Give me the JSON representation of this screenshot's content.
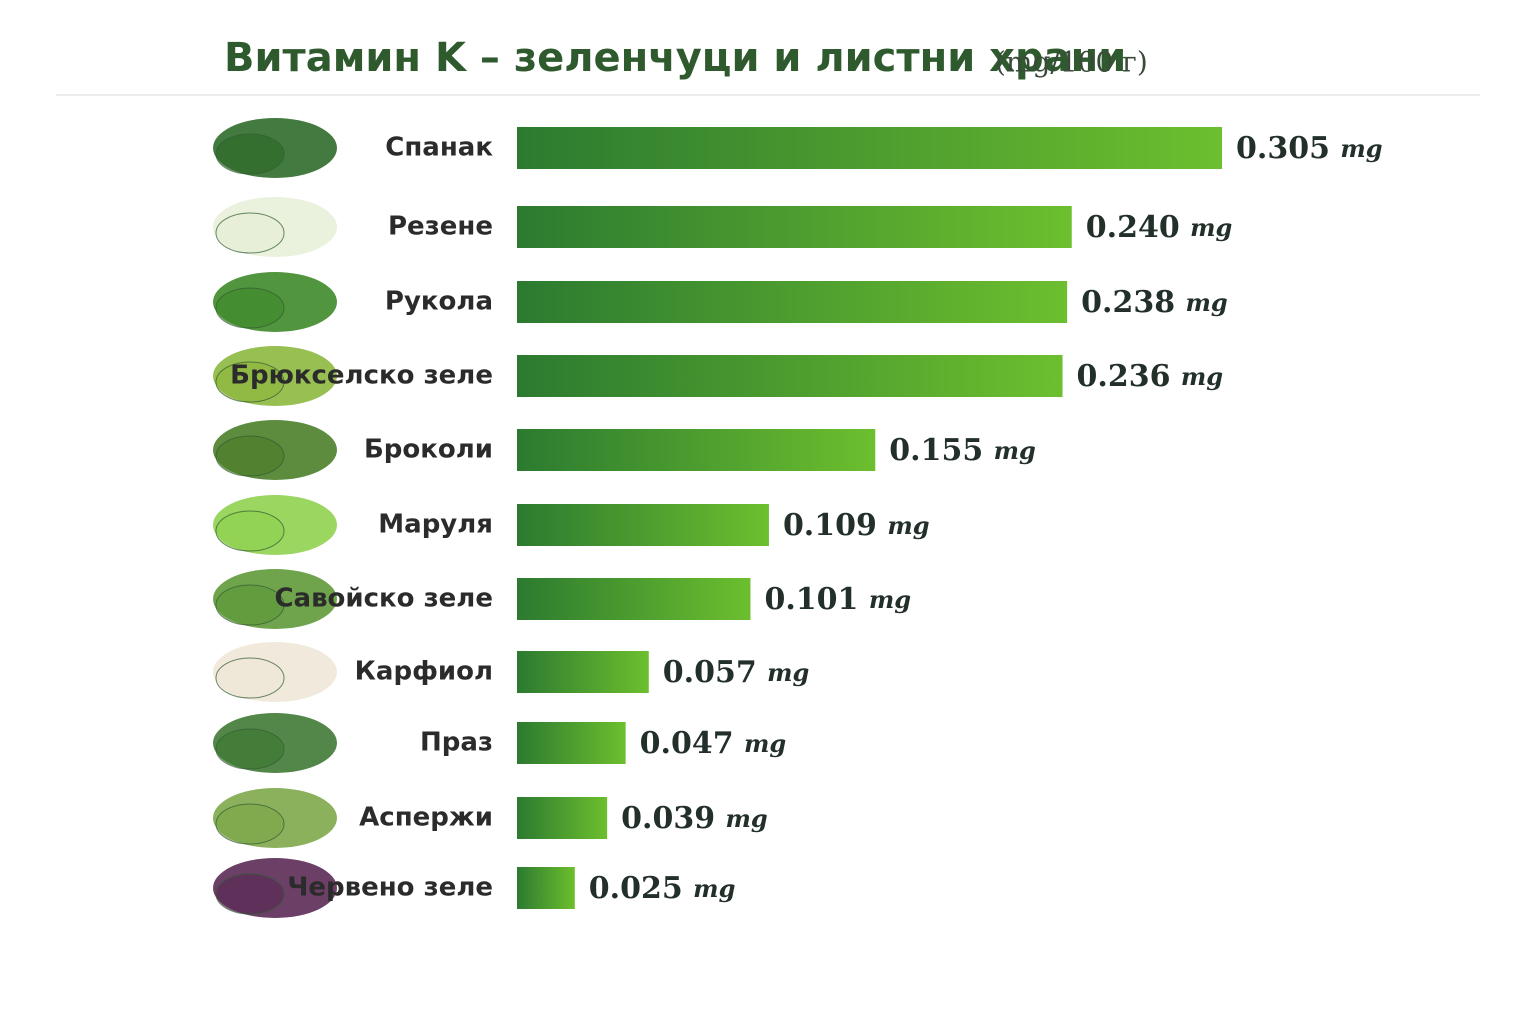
{
  "chart_data": {
    "type": "bar",
    "orientation": "horizontal",
    "title": "Витамин K – зеленчуци и листни храни",
    "subtitle": "(mg/100 г)",
    "categories": [
      "Спанак",
      "Резене",
      "Рукола",
      "Брюкселско зеле",
      "Броколи",
      "Маруля",
      "Савойско зеле",
      "Карфиол",
      "Праз",
      "Аспержи",
      "Червено зеле"
    ],
    "values": [
      0.305,
      0.24,
      0.238,
      0.236,
      0.155,
      0.109,
      0.101,
      0.057,
      0.047,
      0.039,
      0.025
    ],
    "value_labels": [
      "0.305 mg",
      "0.240 mg",
      "0.238 mg",
      "0.236 mg",
      "0.155 mg",
      "0.109 mg",
      "0.101 mg",
      "0.057 mg",
      "0.047 mg",
      "0.039 mg",
      "0.025 mg"
    ],
    "color": "#3f9a2f"
  }
}
